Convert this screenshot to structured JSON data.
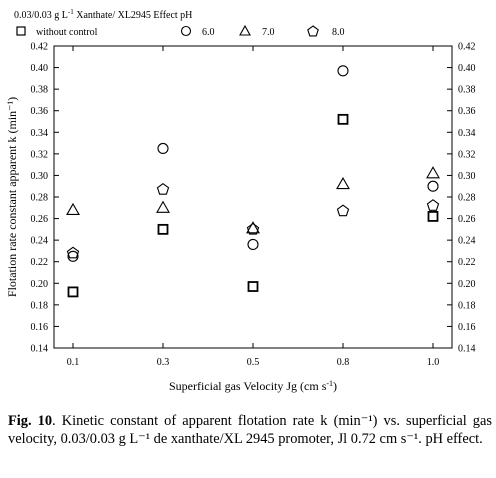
{
  "legend": {
    "header_prefix": "0.03/0.03 g L",
    "header_sup": "-1",
    "header_suffix": " Xanthate/ XL2945   Effect pH",
    "items": [
      {
        "label": "without control",
        "marker": "square"
      },
      {
        "label": "6.0",
        "marker": "circle"
      },
      {
        "label": "7.0",
        "marker": "triangle"
      },
      {
        "label": "8.0",
        "marker": "pentagon"
      }
    ]
  },
  "axes": {
    "xlabel_prefix": "Superficial gas Velocity Jg (cm s",
    "xlabel_sup": "-1",
    "xlabel_suffix": ")",
    "ylabel": "Flotation rate constant apparent k (min⁻¹)"
  },
  "caption": {
    "fig_label": "Fig. 10",
    "text": ". Kinetic constant of apparent flotation rate k (min⁻¹) vs. superficial gas velocity, 0.03/0.03 g L⁻¹ de xanthate/XL 2945 promoter, Jl 0.72 cm s⁻¹. pH effect."
  },
  "chart_data": {
    "type": "scatter",
    "xlabel": "Superficial gas Velocity Jg (cm s-1)",
    "ylabel": "Flotation rate constant apparent k (min-1)",
    "x_categories": [
      "0.1",
      "0.3",
      "0.5",
      "0.8",
      "1.0"
    ],
    "ylim": [
      0.14,
      0.42
    ],
    "yticks": [
      "0.14",
      "0.16",
      "0.18",
      "0.20",
      "0.22",
      "0.24",
      "0.26",
      "0.28",
      "0.30",
      "0.32",
      "0.34",
      "0.36",
      "0.38",
      "0.40",
      "0.42"
    ],
    "grid": false,
    "legend_position": "top",
    "series": [
      {
        "name": "without control",
        "marker": "square",
        "values": [
          0.192,
          0.25,
          0.197,
          0.352,
          0.262
        ]
      },
      {
        "name": "6.0",
        "marker": "circle",
        "values": [
          0.225,
          0.325,
          0.236,
          0.397,
          0.29
        ]
      },
      {
        "name": "7.0",
        "marker": "triangle",
        "values": [
          0.268,
          0.27,
          0.251,
          0.292,
          0.302
        ]
      },
      {
        "name": "8.0",
        "marker": "pentagon",
        "values": [
          0.228,
          0.287,
          0.25,
          0.267,
          0.272
        ]
      }
    ]
  }
}
